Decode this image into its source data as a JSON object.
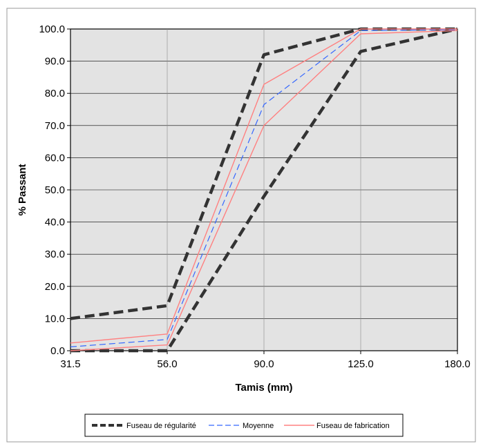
{
  "chart_data": {
    "type": "line",
    "title": "",
    "xlabel": "Tamis (mm)",
    "ylabel": "% Passant",
    "categories": [
      "31.5",
      "56.0",
      "90.0",
      "125.0",
      "180.0"
    ],
    "y_ticks": [
      "0.0",
      "10.0",
      "20.0",
      "30.0",
      "40.0",
      "50.0",
      "60.0",
      "70.0",
      "80.0",
      "90.0",
      "100.0"
    ],
    "ylim": [
      0,
      100
    ],
    "grid": true,
    "legend_position": "bottom",
    "plot_background": "#e3e3e3",
    "legend": {
      "regularite": "Fuseau de régularité",
      "moyenne": "Moyenne",
      "fabrication": "Fuseau de fabrication"
    },
    "series": [
      {
        "name": "Fuseau de régularité",
        "role": "upper",
        "color": "#333333",
        "values": [
          10,
          14,
          92,
          100,
          100
        ]
      },
      {
        "name": "Fuseau de régularité",
        "role": "lower",
        "color": "#333333",
        "values": [
          0,
          0,
          48,
          93,
          100
        ]
      },
      {
        "name": "Moyenne",
        "color": "#3366ff",
        "values": [
          1.2,
          3.5,
          76.5,
          99.5,
          99.8
        ]
      },
      {
        "name": "Fuseau de fabrication",
        "role": "upper",
        "color": "#ff8080",
        "values": [
          2.4,
          5.2,
          82.8,
          100,
          100
        ]
      },
      {
        "name": "Fuseau de fabrication",
        "role": "lower",
        "color": "#ff8080",
        "values": [
          0,
          1.8,
          70,
          98.5,
          99.5
        ]
      }
    ]
  }
}
